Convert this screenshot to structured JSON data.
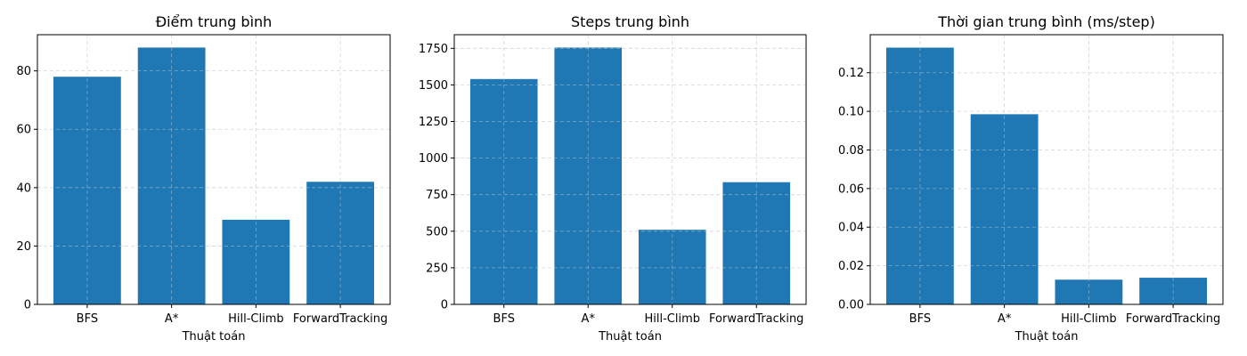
{
  "chart_data": [
    {
      "type": "bar",
      "title": "Điểm trung bình",
      "xlabel": "Thuật toán",
      "ylabel": "",
      "categories": [
        "BFS",
        "A*",
        "Hill-Climb",
        "ForwardTracking"
      ],
      "values": [
        78,
        88,
        29,
        42
      ],
      "ylim": [
        0,
        92.4
      ],
      "yticks": [
        0,
        20,
        40,
        60,
        80
      ],
      "ytick_labels": [
        "0",
        "20",
        "40",
        "60",
        "80"
      ],
      "grid": true,
      "color": "#1f77b4"
    },
    {
      "type": "bar",
      "title": "Steps trung bình",
      "xlabel": "Thuật toán",
      "ylabel": "",
      "categories": [
        "BFS",
        "A*",
        "Hill-Climb",
        "ForwardTracking"
      ],
      "values": [
        1540,
        1755,
        510,
        835
      ],
      "ylim": [
        0,
        1843
      ],
      "yticks": [
        0,
        250,
        500,
        750,
        1000,
        1250,
        1500,
        1750
      ],
      "ytick_labels": [
        "0",
        "250",
        "500",
        "750",
        "1000",
        "1250",
        "1500",
        "1750"
      ],
      "grid": true,
      "color": "#1f77b4"
    },
    {
      "type": "bar",
      "title": "Thời gian trung bình (ms/step)",
      "xlabel": "Thuật toán",
      "ylabel": "",
      "categories": [
        "BFS",
        "A*",
        "Hill-Climb",
        "ForwardTracking"
      ],
      "values": [
        0.133,
        0.0985,
        0.0128,
        0.0138
      ],
      "ylim": [
        0,
        0.1397
      ],
      "yticks": [
        0,
        0.02,
        0.04,
        0.06,
        0.08,
        0.1,
        0.12
      ],
      "ytick_labels": [
        "0.00",
        "0.02",
        "0.04",
        "0.06",
        "0.08",
        "0.10",
        "0.12"
      ],
      "grid": true,
      "color": "#1f77b4"
    }
  ]
}
